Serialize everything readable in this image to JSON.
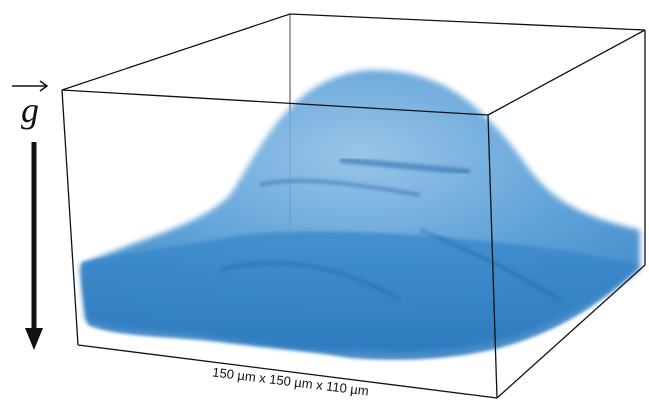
{
  "gravity_label": "g",
  "dimensions_label": "150 µm x 150 µm x 110 µm"
}
